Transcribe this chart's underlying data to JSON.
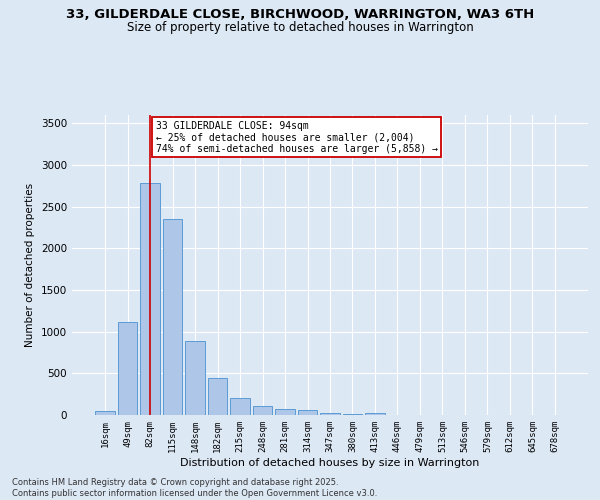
{
  "title_line1": "33, GILDERDALE CLOSE, BIRCHWOOD, WARRINGTON, WA3 6TH",
  "title_line2": "Size of property relative to detached houses in Warrington",
  "xlabel": "Distribution of detached houses by size in Warrington",
  "ylabel": "Number of detached properties",
  "categories": [
    "16sqm",
    "49sqm",
    "82sqm",
    "115sqm",
    "148sqm",
    "182sqm",
    "215sqm",
    "248sqm",
    "281sqm",
    "314sqm",
    "347sqm",
    "380sqm",
    "413sqm",
    "446sqm",
    "479sqm",
    "513sqm",
    "546sqm",
    "579sqm",
    "612sqm",
    "645sqm",
    "678sqm"
  ],
  "values": [
    50,
    1120,
    2790,
    2350,
    890,
    440,
    205,
    105,
    75,
    55,
    30,
    15,
    25,
    5,
    5,
    2,
    2,
    1,
    1,
    0,
    0
  ],
  "bar_color": "#aec6e8",
  "bar_edgecolor": "#5b9bd5",
  "vline_x_idx": 2,
  "vline_color": "#cc0000",
  "annotation_title": "33 GILDERDALE CLOSE: 94sqm",
  "annotation_line1": "← 25% of detached houses are smaller (2,004)",
  "annotation_line2": "74% of semi-detached houses are larger (5,858) →",
  "annotation_box_color": "#cc0000",
  "annotation_bg": "#ffffff",
  "ylim": [
    0,
    3600
  ],
  "background_color": "#dde8f5",
  "footer_line1": "Contains HM Land Registry data © Crown copyright and database right 2025.",
  "footer_line2": "Contains public sector information licensed under the Open Government Licence v3.0.",
  "grid_color": "#ffffff",
  "title_fontsize": 9.5,
  "subtitle_fontsize": 8.5,
  "bar_width": 0.85
}
